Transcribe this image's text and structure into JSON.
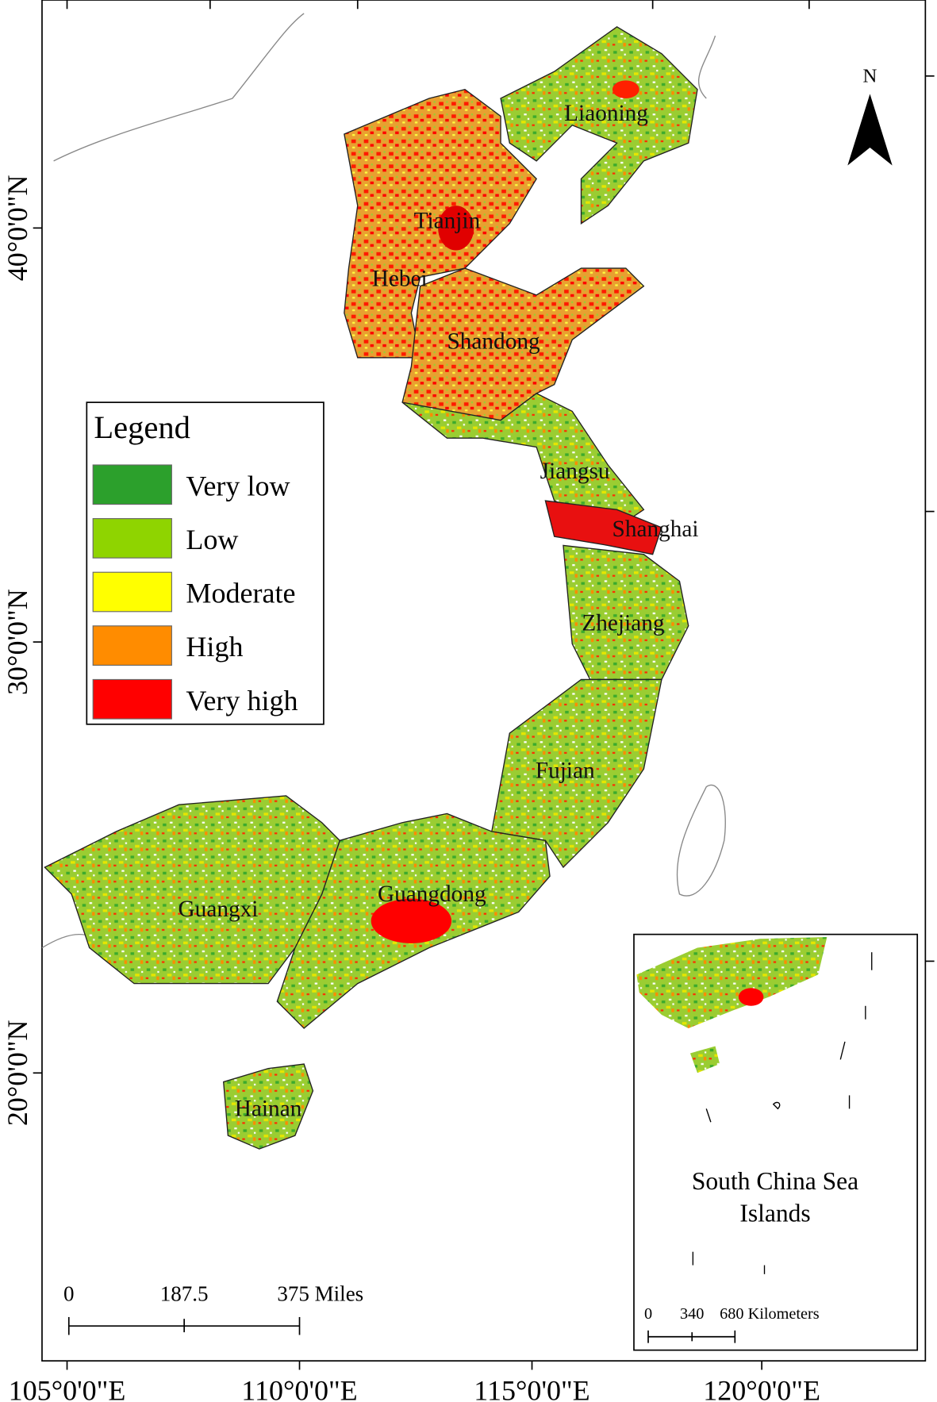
{
  "map": {
    "lon_labels": [
      "105°0'0\"E",
      "110°0'0\"E",
      "115°0'0\"E",
      "120°0'0\"E"
    ],
    "lat_labels": [
      "20°0'0\"N",
      "30°0'0\"N",
      "40°0'0\"N"
    ],
    "provinces": [
      "Liaoning",
      "Tianjin",
      "Hebei",
      "Shandong",
      "Jiangsu",
      "Shanghai",
      "Zhejiang",
      "Fujian",
      "Guangdong",
      "Guangxi",
      "Hainan"
    ],
    "north": "N",
    "legend": {
      "title": "Legend",
      "items": [
        {
          "label": "Very low",
          "color": "#2ca02c"
        },
        {
          "label": "Low",
          "color": "#8fd400"
        },
        {
          "label": "Moderate",
          "color": "#ffff00"
        },
        {
          "label": "High",
          "color": "#ff8c00"
        },
        {
          "label": "Very high",
          "color": "#ff0000"
        }
      ]
    },
    "scale_bar": {
      "labels": [
        "0",
        "187.5",
        "375 Miles"
      ]
    },
    "inset": {
      "title": "South China Sea\nIslands",
      "scale_labels": [
        "0",
        "340",
        "680 Kilometers"
      ]
    }
  }
}
